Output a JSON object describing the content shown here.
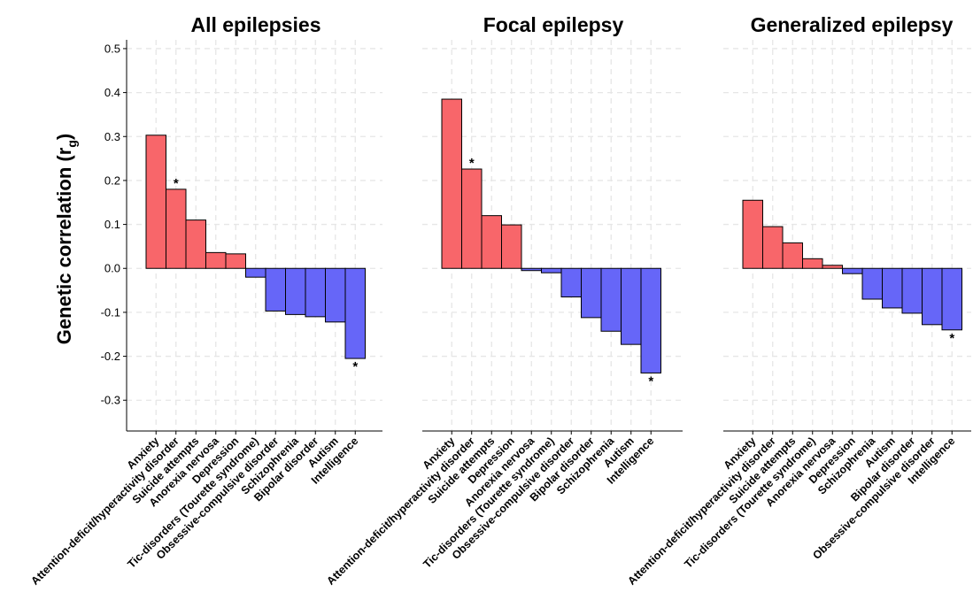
{
  "chart_data": {
    "type": "bar",
    "ylabel": "Genetic correlation (r",
    "ylabel_sub": "g",
    "ylabel_close": ")",
    "ylim": [
      -0.37,
      0.52
    ],
    "yticks": [
      -0.3,
      -0.2,
      -0.1,
      0.0,
      0.1,
      0.2,
      0.3,
      0.4,
      0.5
    ],
    "ytick_labels": [
      "-0.3",
      "-0.2",
      "-0.1",
      "0.0",
      "0.1",
      "0.2",
      "0.3",
      "0.4",
      "0.5"
    ],
    "grid": true,
    "colors": {
      "positive": "#f8666a",
      "negative": "#6666f8"
    },
    "significance_marker": "*",
    "panels": [
      {
        "title": "All epilepsies",
        "categories": [
          "Anxiety",
          "Attention-deficit/hyperactivity disorder",
          "Suicide attempts",
          "Anorexia nervosa",
          "Depression",
          "Tic-disorders (Tourette syndrome)",
          "Obsessive-compulsive disorder",
          "Schizophrenia",
          "Bipolar disorder",
          "Autism",
          "Intelligence"
        ],
        "values": [
          0.303,
          0.18,
          0.11,
          0.036,
          0.033,
          -0.02,
          -0.097,
          -0.105,
          -0.11,
          -0.122,
          -0.205
        ],
        "significant": [
          false,
          true,
          false,
          false,
          false,
          false,
          false,
          false,
          false,
          false,
          true
        ]
      },
      {
        "title": "Focal epilepsy",
        "categories": [
          "Anxiety",
          "Attention-deficit/hyperactivity disorder",
          "Suicide attempts",
          "Depression",
          "Anorexia nervosa",
          "Tic-disorders (Tourette syndrome)",
          "Obsessive-compulsive disorder",
          "Bipolar disorder",
          "Schizophrenia",
          "Autism",
          "Intelligence"
        ],
        "values": [
          0.385,
          0.226,
          0.12,
          0.099,
          -0.005,
          -0.01,
          -0.065,
          -0.112,
          -0.143,
          -0.173,
          -0.238
        ],
        "significant": [
          false,
          true,
          false,
          false,
          false,
          false,
          false,
          false,
          false,
          false,
          true
        ]
      },
      {
        "title": "Generalized epilepsy",
        "categories": [
          "Anxiety",
          "Attention-deficit/hyperactivity disorder",
          "Suicide attempts",
          "Tic-disorders (Tourette syndrome)",
          "Anorexia nervosa",
          "Depression",
          "Schizophrenia",
          "Autism",
          "Bipolar disorder",
          "Obsessive-compulsive disorder",
          "Intelligence"
        ],
        "values": [
          0.155,
          0.095,
          0.058,
          0.022,
          0.007,
          -0.012,
          -0.07,
          -0.09,
          -0.102,
          -0.128,
          -0.14
        ],
        "significant": [
          false,
          false,
          false,
          false,
          false,
          false,
          false,
          false,
          false,
          false,
          true
        ]
      }
    ]
  }
}
